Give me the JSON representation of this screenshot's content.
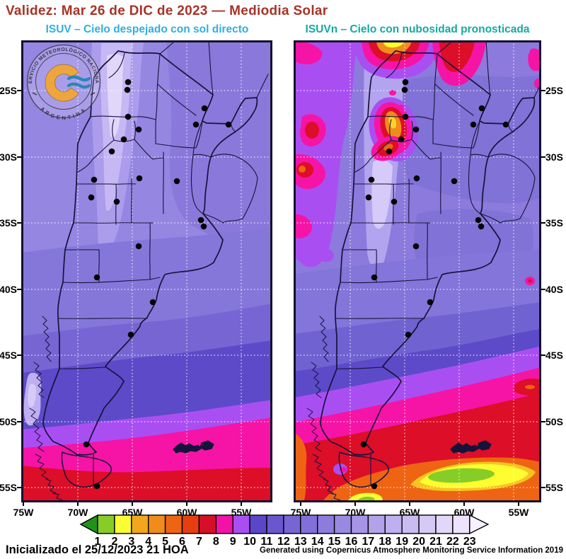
{
  "title": "Validez: Mar 26 de DIC de 2023 — Mediodia Solar",
  "title_color": "#A93226",
  "panels": {
    "left": {
      "title": "ISUV – Cielo despejado con sol directo",
      "title_color": "#2FB0DF"
    },
    "right": {
      "title": "ISUVn – Cielo con nubosidad pronosticada",
      "title_color": "#16A9A0"
    }
  },
  "logo": {
    "arc_text": "SERVICIO METEOROLÓGICO NACIONAL",
    "bottom_text": "ARGENTINA"
  },
  "axes": {
    "lat_ticks": [
      "25S",
      "30S",
      "35S",
      "40S",
      "45S",
      "50S",
      "55S"
    ],
    "lon_ticks": [
      "75W",
      "70W",
      "65W",
      "60W",
      "55W"
    ]
  },
  "chart_data": {
    "type": "heatmap",
    "maps": [
      {
        "id": "ISUV",
        "label": "ISUV – Cielo despejado con sol directo"
      },
      {
        "id": "ISUVn",
        "label": "ISUVn – Cielo con nubosidad pronosticada"
      }
    ],
    "region": "Argentina",
    "lat_range_deg_S": [
      21,
      56
    ],
    "lon_range_deg_W": [
      75,
      52
    ],
    "colorbar": {
      "tick_labels": [
        1,
        2,
        3,
        4,
        5,
        6,
        7,
        8,
        9,
        10,
        11,
        12,
        13,
        14,
        15,
        16,
        17,
        18,
        19,
        20,
        21,
        22,
        23
      ],
      "below_min_color": "#20921A",
      "segment_colors": [
        "#86CD28",
        "#FCFC32",
        "#F2A71F",
        "#F08C1A",
        "#ED6413",
        "#E63E0F",
        "#D60F28",
        "#F013A6",
        "#A94FF2",
        "#5A46C8",
        "#6A57CE",
        "#7765D3",
        "#8270D8",
        "#8E7CDC",
        "#9A89E1",
        "#A695E5",
        "#B2A2EA",
        "#BEAFEE",
        "#CABCF2",
        "#D6C9F5",
        "#E2D6F9",
        "#EEE3FC"
      ],
      "above_max_color": "#F7F0FE"
    }
  },
  "footer": {
    "init": "Inicializado el 25/12/2023 21 HOA",
    "credit": "Generated using Copernicus Atmosphere Monitoring Service Information 2019"
  }
}
